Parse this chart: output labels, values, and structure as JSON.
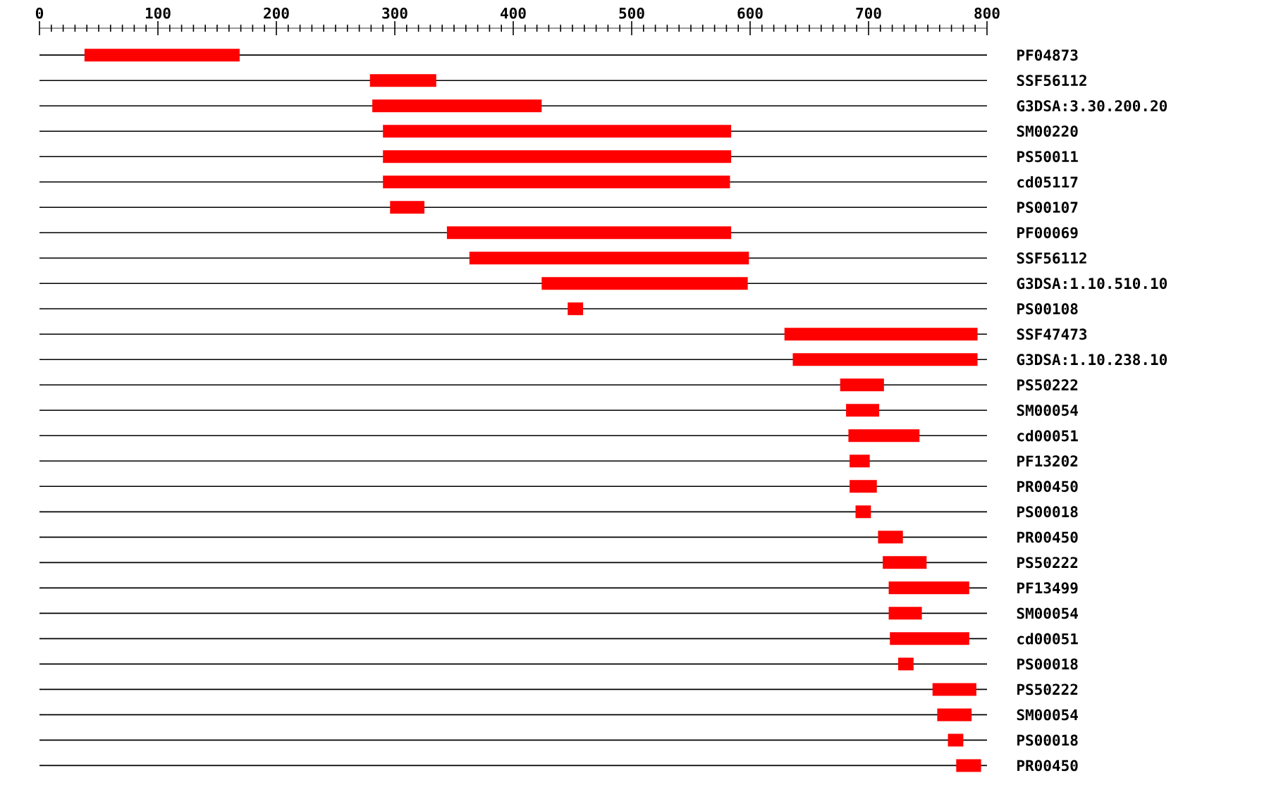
{
  "chart_data": {
    "type": "bar",
    "orientation": "horizontal",
    "categories": [
      "PF04873",
      "SSF56112",
      "G3DSA:3.30.200.20",
      "SM00220",
      "PS50011",
      "cd05117",
      "PS00107",
      "PF00069",
      "SSF56112",
      "G3DSA:1.10.510.10",
      "PS00108",
      "SSF47473",
      "G3DSA:1.10.238.10",
      "PS50222",
      "SM00054",
      "cd00051",
      "PF13202",
      "PR00450",
      "PS00018",
      "PR00450",
      "PS50222",
      "PF13499",
      "SM00054",
      "cd00051",
      "PS00018",
      "PS50222",
      "SM00054",
      "PS00018",
      "PR00450"
    ],
    "base": [
      38,
      279,
      281,
      290,
      290,
      290,
      296,
      344,
      363,
      424,
      446,
      629,
      636,
      676,
      681,
      683,
      684,
      684,
      689,
      708,
      712,
      717,
      717,
      718,
      725,
      754,
      758,
      767,
      774
    ],
    "values": [
      131,
      56,
      143,
      294,
      294,
      293,
      29,
      240,
      236,
      174,
      13,
      163,
      156,
      37,
      28,
      60,
      17,
      23,
      13,
      21,
      37,
      68,
      28,
      67,
      13,
      37,
      29,
      13,
      21
    ],
    "color": "#ff0000",
    "xlim": [
      0,
      800
    ],
    "xticks": [
      0,
      100,
      200,
      300,
      400,
      500,
      600,
      700,
      800
    ],
    "grid": "y"
  }
}
